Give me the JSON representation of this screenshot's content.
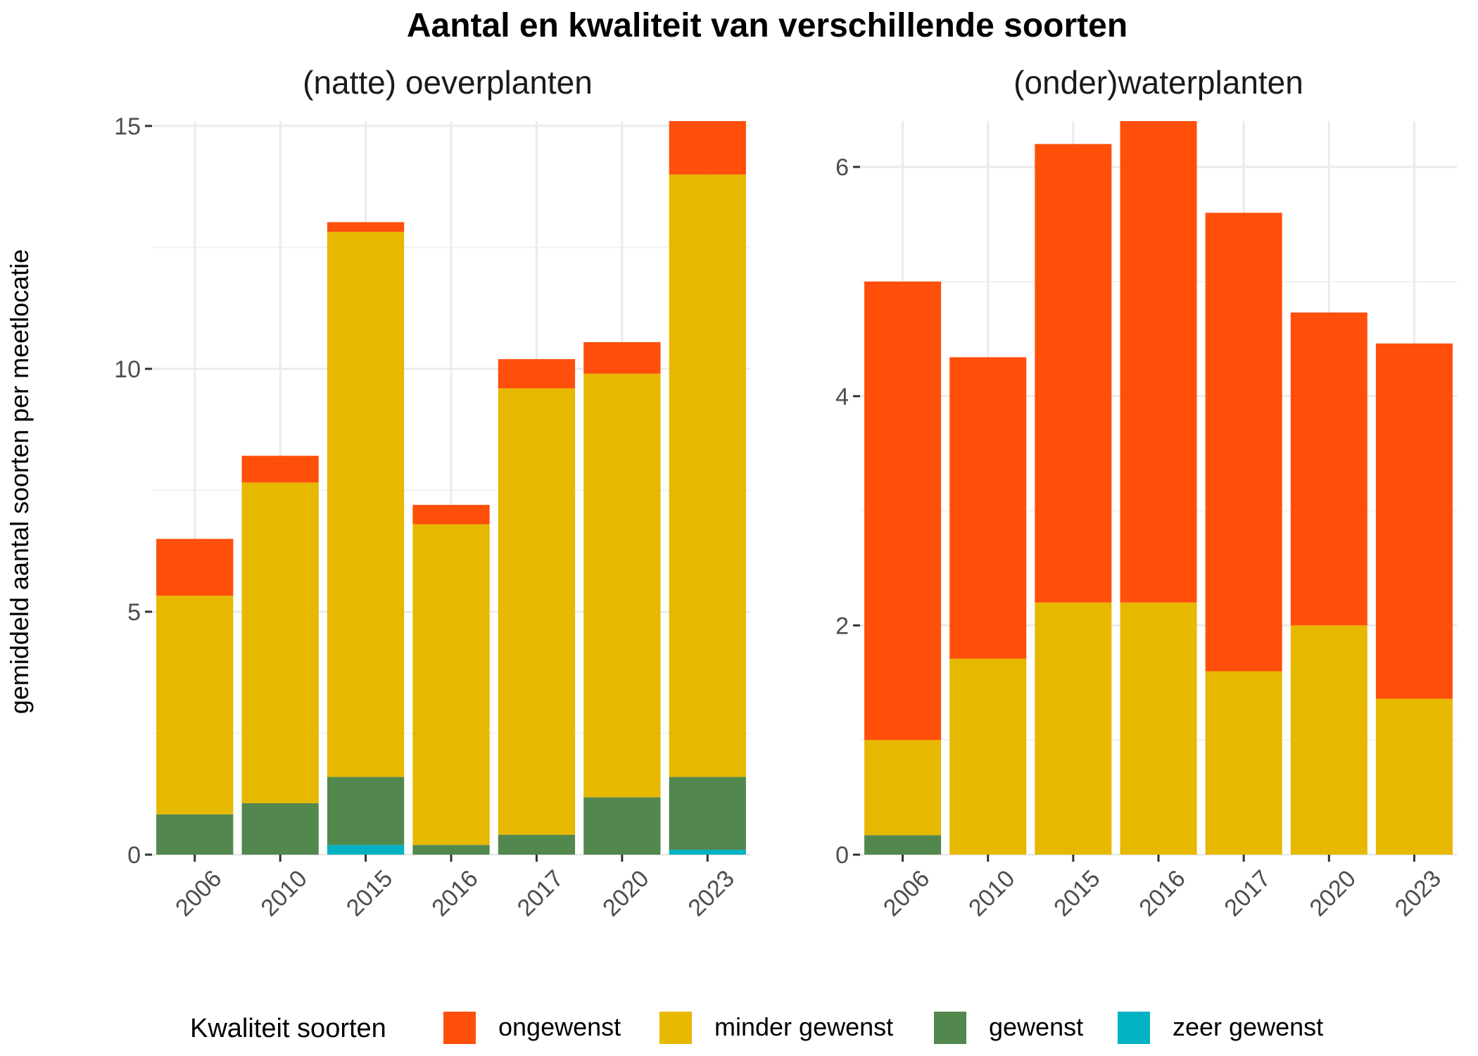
{
  "chart_data": {
    "type": "bar",
    "stacked": true,
    "title": "Aantal en kwaliteit van verschillende soorten",
    "ylabel": "gemiddeld aantal soorten per meetlocatie",
    "legend": {
      "title": "Kwaliteit soorten",
      "position": "bottom",
      "entries": [
        "ongewenst",
        "minder gewenst",
        "gewenst",
        "zeer gewenst"
      ]
    },
    "colors": {
      "ongewenst": "#FF4F0A",
      "minder gewenst": "#E6B800",
      "gewenst": "#52884E",
      "zeer gewenst": "#00B2C2"
    },
    "grid": true,
    "panels": [
      {
        "title": "(natte) oeverplanten",
        "categories": [
          "2006",
          "2010",
          "2015",
          "2016",
          "2017",
          "2020",
          "2023"
        ],
        "ylim": [
          0,
          15.1
        ],
        "yticks": [
          0,
          5,
          10,
          15
        ],
        "series": [
          {
            "name": "zeer gewenst",
            "values": [
              0,
              0,
              0.2,
              0,
              0,
              0,
              0.1
            ]
          },
          {
            "name": "gewenst",
            "values": [
              0.83,
              1.06,
              1.4,
              0.2,
              0.41,
              1.18,
              1.5
            ]
          },
          {
            "name": "minder gewenst",
            "values": [
              4.5,
              6.6,
              11.22,
              6.6,
              9.19,
              8.72,
              12.4
            ]
          },
          {
            "name": "ongewenst",
            "values": [
              1.17,
              0.55,
              0.2,
              0.4,
              0.6,
              0.65,
              1.1
            ]
          }
        ]
      },
      {
        "title": "(onder)waterplanten",
        "categories": [
          "2006",
          "2010",
          "2015",
          "2016",
          "2017",
          "2020",
          "2023"
        ],
        "ylim": [
          0,
          6.4
        ],
        "yticks": [
          0,
          2,
          4,
          6
        ],
        "series": [
          {
            "name": "zeer gewenst",
            "values": [
              0,
              0,
              0,
              0,
              0,
              0,
              0
            ]
          },
          {
            "name": "gewenst",
            "values": [
              0.17,
              0,
              0,
              0,
              0,
              0,
              0
            ]
          },
          {
            "name": "minder gewenst",
            "values": [
              0.83,
              1.71,
              2.2,
              2.2,
              1.6,
              2.0,
              1.36
            ]
          },
          {
            "name": "ongewenst",
            "values": [
              4.0,
              2.63,
              4.0,
              4.2,
              4.0,
              2.73,
              3.1
            ]
          }
        ]
      }
    ]
  }
}
